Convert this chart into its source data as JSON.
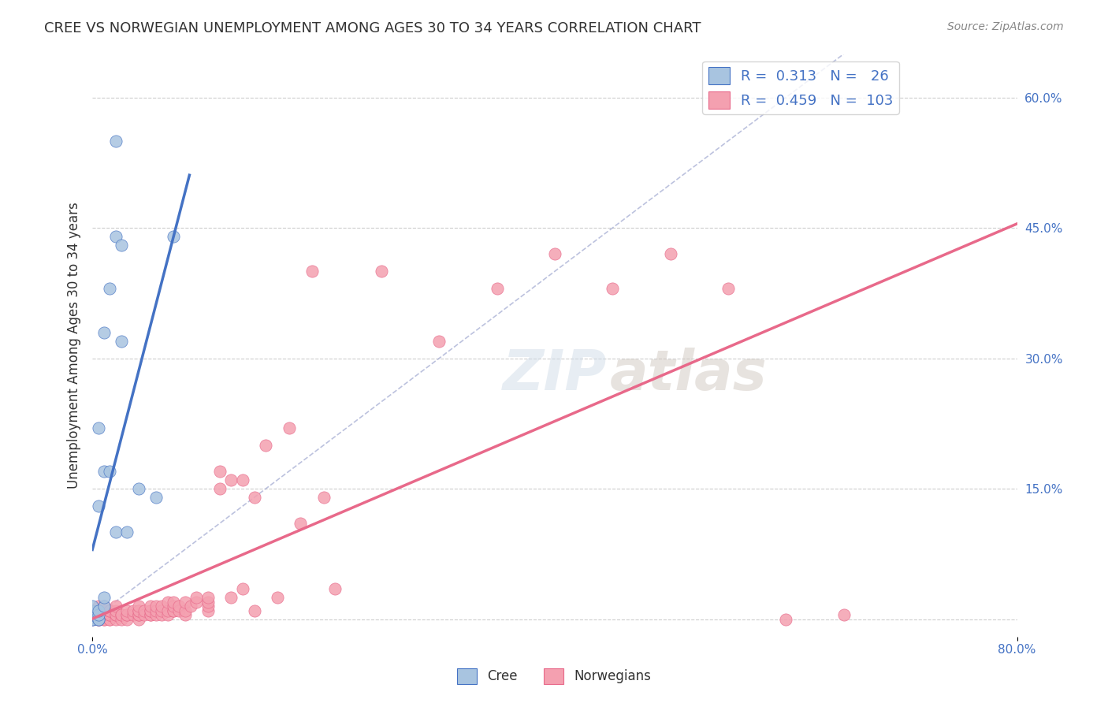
{
  "title": "CREE VS NORWEGIAN UNEMPLOYMENT AMONG AGES 30 TO 34 YEARS CORRELATION CHART",
  "source": "Source: ZipAtlas.com",
  "xlabel": "",
  "ylabel": "Unemployment Among Ages 30 to 34 years",
  "xlim": [
    0.0,
    0.8
  ],
  "ylim": [
    -0.02,
    0.65
  ],
  "xticks": [
    0.0,
    0.1,
    0.2,
    0.3,
    0.4,
    0.5,
    0.6,
    0.7,
    0.8
  ],
  "xticklabels": [
    "0.0%",
    "",
    "",
    "",
    "",
    "",
    "",
    "",
    "80.0%"
  ],
  "yticks_right": [
    0.0,
    0.15,
    0.3,
    0.45,
    0.6
  ],
  "ytick_right_labels": [
    "",
    "15.0%",
    "30.0%",
    "45.0%",
    "60.0%"
  ],
  "legend_blue_R": "0.313",
  "legend_blue_N": "26",
  "legend_pink_R": "0.459",
  "legend_pink_N": "103",
  "cree_color": "#a8c4e0",
  "norwegian_color": "#f4a0b0",
  "cree_line_color": "#4472c4",
  "norwegian_line_color": "#e8698a",
  "watermark": "ZIPatlas",
  "background_color": "#ffffff",
  "cree_x": [
    0.0,
    0.0,
    0.0,
    0.0,
    0.0,
    0.005,
    0.005,
    0.005,
    0.005,
    0.005,
    0.005,
    0.01,
    0.01,
    0.01,
    0.01,
    0.015,
    0.015,
    0.02,
    0.02,
    0.02,
    0.025,
    0.025,
    0.03,
    0.04,
    0.055,
    0.07
  ],
  "cree_y": [
    0.0,
    0.0,
    0.005,
    0.01,
    0.015,
    0.0,
    0.0,
    0.005,
    0.01,
    0.13,
    0.22,
    0.015,
    0.025,
    0.17,
    0.33,
    0.17,
    0.38,
    0.1,
    0.44,
    0.55,
    0.32,
    0.43,
    0.1,
    0.15,
    0.14,
    0.44
  ],
  "norwegian_x": [
    0.0,
    0.0,
    0.0,
    0.005,
    0.005,
    0.005,
    0.005,
    0.005,
    0.005,
    0.005,
    0.005,
    0.005,
    0.005,
    0.01,
    0.01,
    0.01,
    0.01,
    0.01,
    0.01,
    0.01,
    0.01,
    0.015,
    0.015,
    0.015,
    0.015,
    0.015,
    0.015,
    0.02,
    0.02,
    0.02,
    0.02,
    0.02,
    0.025,
    0.025,
    0.025,
    0.03,
    0.03,
    0.03,
    0.03,
    0.035,
    0.035,
    0.04,
    0.04,
    0.04,
    0.04,
    0.04,
    0.04,
    0.045,
    0.045,
    0.05,
    0.05,
    0.05,
    0.05,
    0.05,
    0.055,
    0.055,
    0.055,
    0.06,
    0.06,
    0.06,
    0.065,
    0.065,
    0.065,
    0.07,
    0.07,
    0.07,
    0.07,
    0.075,
    0.075,
    0.08,
    0.08,
    0.08,
    0.085,
    0.09,
    0.09,
    0.1,
    0.1,
    0.1,
    0.1,
    0.11,
    0.11,
    0.12,
    0.12,
    0.13,
    0.13,
    0.14,
    0.14,
    0.15,
    0.16,
    0.17,
    0.18,
    0.19,
    0.2,
    0.21,
    0.25,
    0.3,
    0.35,
    0.4,
    0.45,
    0.5,
    0.55,
    0.6,
    0.65
  ],
  "norwegian_y": [
    0.0,
    0.005,
    0.005,
    0.0,
    0.0,
    0.0,
    0.005,
    0.005,
    0.005,
    0.01,
    0.01,
    0.01,
    0.015,
    0.0,
    0.0,
    0.005,
    0.005,
    0.005,
    0.005,
    0.01,
    0.015,
    0.0,
    0.0,
    0.005,
    0.005,
    0.01,
    0.01,
    0.0,
    0.005,
    0.005,
    0.01,
    0.015,
    0.0,
    0.005,
    0.005,
    0.0,
    0.005,
    0.005,
    0.01,
    0.005,
    0.01,
    0.0,
    0.005,
    0.005,
    0.01,
    0.01,
    0.015,
    0.005,
    0.01,
    0.005,
    0.005,
    0.01,
    0.01,
    0.015,
    0.005,
    0.01,
    0.015,
    0.005,
    0.01,
    0.015,
    0.005,
    0.01,
    0.02,
    0.01,
    0.01,
    0.015,
    0.02,
    0.01,
    0.015,
    0.005,
    0.01,
    0.02,
    0.015,
    0.02,
    0.025,
    0.01,
    0.015,
    0.02,
    0.025,
    0.15,
    0.17,
    0.025,
    0.16,
    0.035,
    0.16,
    0.01,
    0.14,
    0.2,
    0.025,
    0.22,
    0.11,
    0.4,
    0.14,
    0.035,
    0.4,
    0.32,
    0.38,
    0.42,
    0.38,
    0.42,
    0.38,
    0.0,
    0.005
  ]
}
